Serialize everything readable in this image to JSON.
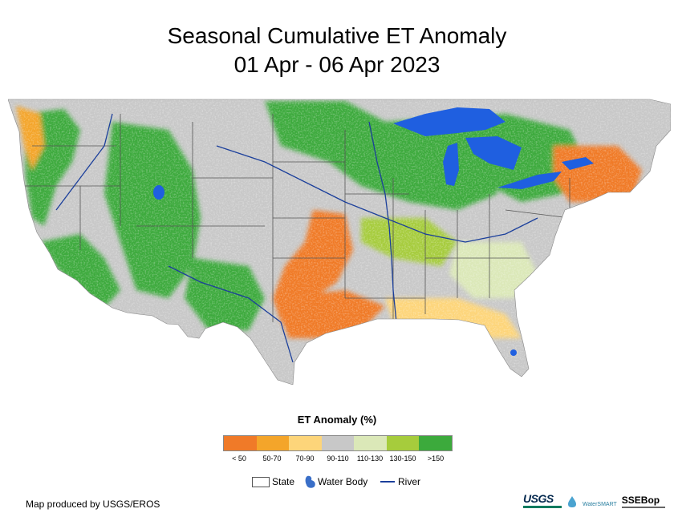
{
  "title": {
    "line1": "Seasonal Cumulative ET Anomaly",
    "line2": "01 Apr - 06 Apr 2023"
  },
  "legend": {
    "title": "ET Anomaly (%)",
    "classes": [
      {
        "label": "< 50",
        "color": "#f07a28"
      },
      {
        "label": "50-70",
        "color": "#f4a52a"
      },
      {
        "label": "70-90",
        "color": "#fdd57a"
      },
      {
        "label": "90-110",
        "color": "#c8c8c8"
      },
      {
        "label": "110-130",
        "color": "#dbe8b8"
      },
      {
        "label": "130-150",
        "color": "#a6cc3c"
      },
      {
        "label": ">150",
        "color": "#3caa3c"
      }
    ],
    "keys": {
      "state": "State",
      "water_body": "Water Body",
      "river": "River"
    }
  },
  "map_colors": {
    "state_border": "#555555",
    "water": "#1f5fe0",
    "river": "#1b3f9b"
  },
  "credit": "Map produced by USGS/EROS",
  "logos": {
    "usgs": "USGS",
    "smart": "WaterSMART",
    "ssebop": "SSEBop"
  }
}
